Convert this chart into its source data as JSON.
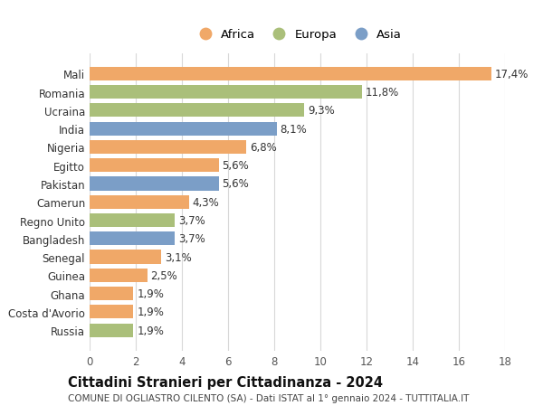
{
  "countries": [
    "Mali",
    "Romania",
    "Ucraina",
    "India",
    "Nigeria",
    "Egitto",
    "Pakistan",
    "Camerun",
    "Regno Unito",
    "Bangladesh",
    "Senegal",
    "Guinea",
    "Ghana",
    "Costa d'Avorio",
    "Russia"
  ],
  "values": [
    17.4,
    11.8,
    9.3,
    8.1,
    6.8,
    5.6,
    5.6,
    4.3,
    3.7,
    3.7,
    3.1,
    2.5,
    1.9,
    1.9,
    1.9
  ],
  "labels": [
    "17,4%",
    "11,8%",
    "9,3%",
    "8,1%",
    "6,8%",
    "5,6%",
    "5,6%",
    "4,3%",
    "3,7%",
    "3,7%",
    "3,1%",
    "2,5%",
    "1,9%",
    "1,9%",
    "1,9%"
  ],
  "continents": [
    "Africa",
    "Europa",
    "Europa",
    "Asia",
    "Africa",
    "Africa",
    "Asia",
    "Africa",
    "Europa",
    "Asia",
    "Africa",
    "Africa",
    "Africa",
    "Africa",
    "Europa"
  ],
  "colors": {
    "Africa": "#F0A868",
    "Europa": "#AABF7A",
    "Asia": "#7B9EC7"
  },
  "legend_labels": [
    "Africa",
    "Europa",
    "Asia"
  ],
  "title": "Cittadini Stranieri per Cittadinanza - 2024",
  "subtitle": "COMUNE DI OGLIASTRO CILENTO (SA) - Dati ISTAT al 1° gennaio 2024 - TUTTITALIA.IT",
  "xlim": [
    0,
    18
  ],
  "xticks": [
    0,
    2,
    4,
    6,
    8,
    10,
    12,
    14,
    16,
    18
  ],
  "background_color": "#ffffff",
  "grid_color": "#d8d8d8",
  "bar_height": 0.75,
  "label_fontsize": 8.5,
  "tick_fontsize": 8.5,
  "title_fontsize": 10.5,
  "subtitle_fontsize": 7.5
}
